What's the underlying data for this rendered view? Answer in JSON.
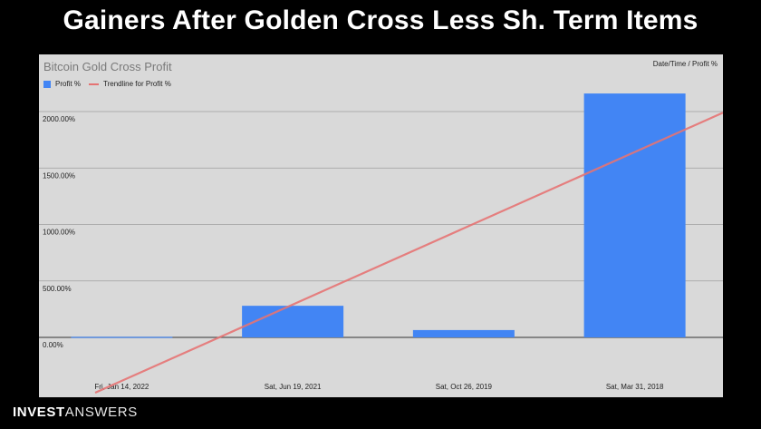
{
  "headline": "Gainers After Golden Cross Less Sh. Term Items",
  "brand": {
    "bold": "INVEST",
    "light": "ANSWERS"
  },
  "chart_data": {
    "type": "bar",
    "title": "Bitcoin Gold Cross Profit",
    "corner_label": "Date/Time / Profit %",
    "legend": [
      {
        "label": "Profit %",
        "kind": "bar",
        "color": "#4285f4"
      },
      {
        "label": "Trendline for Profit %",
        "kind": "line",
        "color": "#e57373"
      }
    ],
    "legend_position": "top-left",
    "categories": [
      "Fri, Jan 14, 2022",
      "Sat, Jun 19, 2021",
      "Sat, Oct 26, 2019",
      "Sat, Mar 31, 2018"
    ],
    "series": [
      {
        "name": "Profit %",
        "values": [
          5,
          280,
          65,
          2160
        ]
      }
    ],
    "trendline": {
      "start": -490,
      "end": 1990
    },
    "ylim": [
      -500,
      2250
    ],
    "yticks": [
      0,
      500,
      1000,
      1500,
      2000
    ],
    "ytick_labels": [
      "0.00%",
      "500.00%",
      "1000.00%",
      "1500.00%",
      "2000.00%"
    ],
    "grid": true,
    "colors": {
      "bar": "#4285f4",
      "trend": "#e57373",
      "background": "#d9d9d9"
    }
  }
}
